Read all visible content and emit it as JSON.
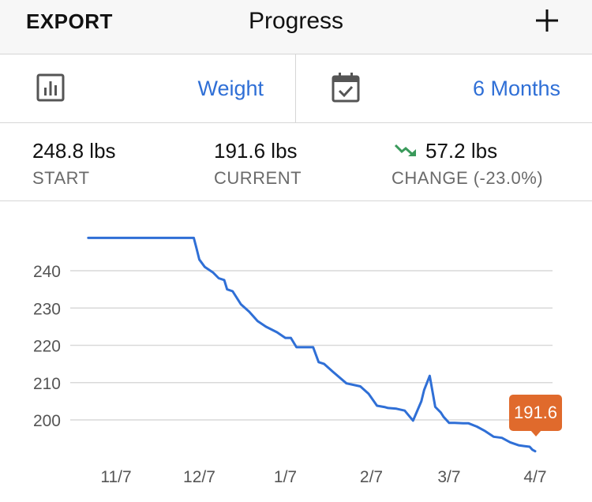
{
  "header": {
    "export_label": "EXPORT",
    "title": "Progress",
    "add_icon": "plus-icon"
  },
  "selectors": {
    "metric": {
      "icon": "bar-chart-icon",
      "value": "Weight"
    },
    "range": {
      "icon": "calendar-check-icon",
      "value": "6 Months"
    }
  },
  "stats": {
    "start": {
      "value": "248.8 lbs",
      "label": "START"
    },
    "current": {
      "value": "191.6 lbs",
      "label": "CURRENT"
    },
    "change": {
      "value": "57.2 lbs",
      "label": "CHANGE (-23.0%)",
      "icon": "trend-down-icon",
      "icon_color": "#3a9a5b"
    }
  },
  "colors": {
    "accent": "#2f6fd6",
    "line": "#2f6fd6",
    "tooltip": "#e06a2c",
    "grid": "#d9d9d9"
  },
  "chart_data": {
    "type": "line",
    "y_ticks": [
      200,
      210,
      220,
      230,
      240
    ],
    "x_ticks": [
      "11/7",
      "12/7",
      "1/7",
      "2/7",
      "3/7",
      "4/7"
    ],
    "ylim": [
      192,
      250
    ],
    "grid": true,
    "series": [
      {
        "x_days": [
          -10,
          28,
          29,
          30,
          32,
          35,
          37,
          39,
          40,
          42,
          45,
          48,
          51,
          54,
          58,
          61,
          63,
          65,
          67,
          68,
          71,
          73,
          75,
          78,
          83,
          88,
          91,
          94,
          97,
          98,
          101,
          104,
          107,
          110,
          111,
          113,
          115,
          117,
          118,
          120,
          122,
          125,
          127,
          130,
          133,
          136,
          139,
          142,
          145,
          147,
          149,
          150,
          151
        ],
        "values": [
          248.8,
          248.8,
          246,
          243,
          241,
          239.5,
          238,
          237.5,
          235,
          234.5,
          231,
          229,
          226.5,
          225,
          223.5,
          222,
          222,
          219.5,
          219.5,
          219.5,
          219.5,
          215.5,
          215,
          213,
          209.8,
          209,
          207,
          203.8,
          203.4,
          203.2,
          203,
          202.5,
          199.8,
          205,
          208,
          211.8,
          203.5,
          202,
          200.8,
          199.2,
          199.2,
          199.1,
          199.1,
          198.2,
          197,
          195.5,
          195.2,
          194,
          193.2,
          193,
          192.8,
          192,
          191.6
        ]
      }
    ],
    "tooltip_value": "191.6",
    "x_tick_days": [
      0,
      30,
      61,
      92,
      120,
      151
    ]
  }
}
